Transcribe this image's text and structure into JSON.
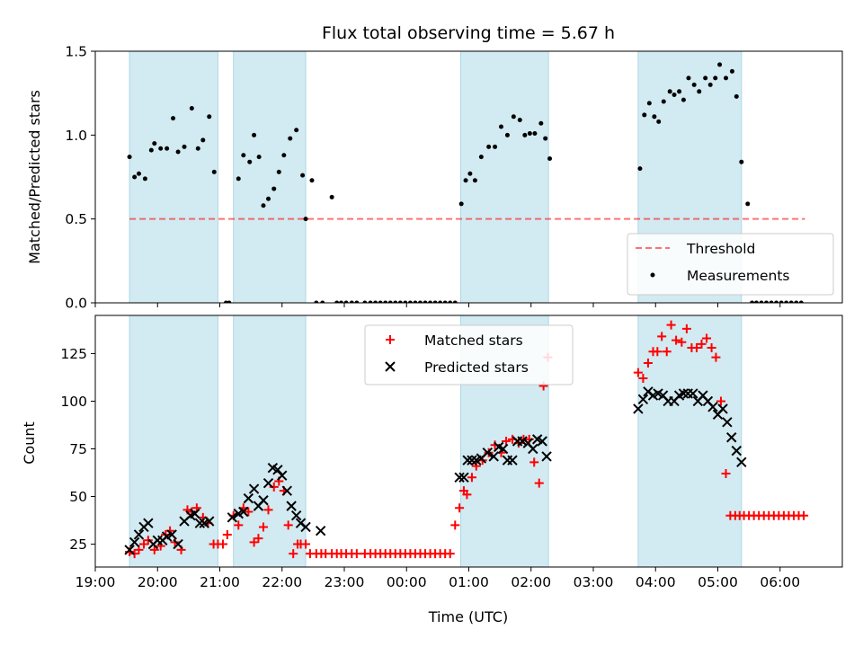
{
  "chart_data": {
    "type": "scatter",
    "title": "Flux total observing time = 5.67 h",
    "xlabel": "Time (UTC)",
    "x_unit": "hours since 19:00 UTC",
    "xlim": [
      19.0,
      31.0
    ],
    "x_ticks": [
      "19:00",
      "20:00",
      "21:00",
      "22:00",
      "23:00",
      "00:00",
      "01:00",
      "02:00",
      "03:00",
      "04:00",
      "05:00",
      "06:00"
    ],
    "observing_windows": [
      [
        19.55,
        20.97
      ],
      [
        21.22,
        22.38
      ],
      [
        24.87,
        26.28
      ],
      [
        27.72,
        29.38
      ]
    ],
    "colors": {
      "window": "#add8e6",
      "threshold": "#ff0000",
      "measurement": "#000000",
      "matched": "#ff0000",
      "predicted": "#000000"
    },
    "panels": [
      {
        "ylabel": "Matched/Predicted stars",
        "ylim": [
          0,
          1.5
        ],
        "y_ticks": [
          "0.0",
          "0.5",
          "1.0",
          "1.5"
        ],
        "legend_position": "lower right",
        "series": [
          {
            "name": "Threshold",
            "style": "dashed-line",
            "x": [
              19.55,
              30.4
            ],
            "y": [
              0.5,
              0.5
            ]
          },
          {
            "name": "Measurements",
            "style": "dots",
            "x": [
              19.55,
              19.63,
              19.7,
              19.8,
              19.9,
              19.95,
              20.05,
              20.15,
              20.25,
              20.33,
              20.43,
              20.55,
              20.65,
              20.73,
              20.83,
              20.91,
              21.1,
              21.15,
              21.3,
              21.38,
              21.48,
              21.55,
              21.63,
              21.7,
              21.78,
              21.87,
              21.95,
              22.03,
              22.13,
              22.23,
              22.33,
              22.38,
              22.48,
              22.55,
              22.65,
              22.8,
              22.88,
              22.95,
              23.03,
              23.12,
              23.2,
              23.33,
              23.42,
              23.5,
              23.58,
              23.66,
              23.74,
              23.82,
              23.9,
              23.98,
              24.06,
              24.14,
              24.22,
              24.3,
              24.38,
              24.46,
              24.54,
              24.62,
              24.7,
              24.78,
              24.88,
              24.95,
              25.02,
              25.1,
              25.2,
              25.32,
              25.42,
              25.52,
              25.62,
              25.72,
              25.82,
              25.9,
              25.98,
              26.06,
              26.16,
              26.23,
              26.3,
              27.75,
              27.82,
              27.9,
              27.98,
              28.05,
              28.13,
              28.23,
              28.3,
              28.38,
              28.45,
              28.53,
              28.62,
              28.7,
              28.8,
              28.88,
              28.96,
              29.03,
              29.13,
              29.23,
              29.3,
              29.38,
              29.48,
              29.55,
              29.62,
              29.7,
              29.78,
              29.86,
              29.94,
              30.02,
              30.1,
              30.18,
              30.26,
              30.34
            ],
            "y": [
              0.87,
              0.75,
              0.77,
              0.74,
              0.91,
              0.95,
              0.92,
              0.92,
              1.1,
              0.9,
              0.93,
              1.16,
              0.92,
              0.97,
              1.11,
              0.78,
              0.0,
              0.0,
              0.74,
              0.88,
              0.84,
              1.0,
              0.87,
              0.58,
              0.62,
              0.68,
              0.78,
              0.88,
              0.98,
              1.03,
              0.76,
              0.5,
              0.73,
              0.0,
              0.0,
              0.63,
              0.0,
              0.0,
              0.0,
              0.0,
              0.0,
              0.0,
              0.0,
              0.0,
              0.0,
              0.0,
              0.0,
              0.0,
              0.0,
              0.0,
              0.0,
              0.0,
              0.0,
              0.0,
              0.0,
              0.0,
              0.0,
              0.0,
              0.0,
              0.0,
              0.59,
              0.73,
              0.77,
              0.73,
              0.87,
              0.93,
              0.93,
              1.05,
              1.0,
              1.11,
              1.09,
              1.0,
              1.01,
              1.01,
              1.07,
              0.98,
              0.86,
              0.8,
              1.12,
              1.19,
              1.11,
              1.08,
              1.2,
              1.26,
              1.24,
              1.26,
              1.21,
              1.34,
              1.3,
              1.26,
              1.34,
              1.3,
              1.34,
              1.42,
              1.34,
              1.38,
              1.23,
              0.84,
              0.59,
              0.0,
              0.0,
              0.0,
              0.0,
              0.0,
              0.0,
              0.0,
              0.0,
              0.0,
              0.0,
              0.0
            ]
          }
        ]
      },
      {
        "ylabel": "Count",
        "ylim": [
          13,
          145
        ],
        "y_ticks": [
          "25",
          "50",
          "75",
          "100",
          "125"
        ],
        "legend_position": "upper center",
        "series": [
          {
            "name": "Matched stars",
            "marker": "plus",
            "x": [
              19.55,
              19.63,
              19.7,
              19.78,
              19.85,
              19.95,
              20.05,
              20.13,
              20.2,
              20.28,
              20.38,
              20.48,
              20.55,
              20.63,
              20.73,
              20.81,
              20.9,
              20.97,
              21.05,
              21.12,
              21.22,
              21.3,
              21.38,
              21.46,
              21.55,
              21.62,
              21.7,
              21.78,
              21.87,
              21.95,
              22.03,
              22.1,
              22.18,
              22.25,
              22.3,
              22.38,
              22.45,
              22.55,
              22.63,
              22.7,
              22.8,
              22.88,
              22.95,
              23.03,
              23.12,
              23.2,
              23.33,
              23.42,
              23.5,
              23.58,
              23.66,
              23.74,
              23.82,
              23.9,
              23.98,
              24.06,
              24.14,
              24.22,
              24.3,
              24.38,
              24.46,
              24.54,
              24.62,
              24.7,
              24.78,
              24.85,
              24.92,
              24.97,
              25.05,
              25.12,
              25.22,
              25.32,
              25.42,
              25.52,
              25.6,
              25.7,
              25.8,
              25.88,
              25.97,
              26.05,
              26.13,
              26.2,
              26.27,
              27.72,
              27.8,
              27.88,
              27.96,
              28.03,
              28.1,
              28.18,
              28.25,
              28.33,
              28.42,
              28.5,
              28.58,
              28.66,
              28.74,
              28.82,
              28.9,
              28.97,
              29.05,
              29.13,
              29.2,
              29.28,
              29.35,
              29.42,
              29.5,
              29.58,
              29.66,
              29.74,
              29.82,
              29.9,
              29.98,
              30.06,
              30.14,
              30.22,
              30.3,
              30.38
            ],
            "y": [
              21,
              20,
              22,
              25,
              27,
              22,
              24,
              30,
              32,
              26,
              22,
              43,
              42,
              44,
              39,
              36,
              25,
              25,
              25,
              30,
              40,
              35,
              44,
              42,
              26,
              28,
              34,
              43,
              55,
              58,
              53,
              35,
              20,
              25,
              25,
              25,
              20,
              20,
              20,
              20,
              20,
              20,
              20,
              20,
              20,
              20,
              20,
              20,
              20,
              20,
              20,
              20,
              20,
              20,
              20,
              20,
              20,
              20,
              20,
              20,
              20,
              20,
              20,
              20,
              35,
              44,
              53,
              51,
              60,
              66,
              69,
              73,
              77,
              73,
              79,
              80,
              78,
              80,
              80,
              68,
              57,
              108,
              123,
              115,
              112,
              120,
              126,
              126,
              134,
              126,
              140,
              132,
              131,
              138,
              128,
              128,
              130,
              133,
              128,
              123,
              100,
              62,
              40,
              40,
              40,
              40,
              40,
              40,
              40,
              40,
              40,
              40,
              40,
              40,
              40,
              40,
              40,
              40
            ]
          },
          {
            "name": "Predicted stars",
            "marker": "x",
            "x": [
              19.55,
              19.63,
              19.7,
              19.78,
              19.85,
              19.93,
              20.0,
              20.08,
              20.15,
              20.23,
              20.33,
              20.43,
              20.53,
              20.6,
              20.68,
              20.75,
              20.83,
              21.2,
              21.3,
              21.38,
              21.46,
              21.55,
              21.62,
              21.7,
              21.78,
              21.85,
              21.93,
              22.0,
              22.08,
              22.15,
              22.23,
              22.3,
              22.38,
              22.62,
              24.85,
              24.92,
              24.98,
              25.05,
              25.12,
              25.2,
              25.3,
              25.4,
              25.48,
              25.55,
              25.62,
              25.7,
              25.78,
              25.86,
              25.95,
              26.03,
              26.1,
              26.18,
              26.25,
              27.72,
              27.8,
              27.88,
              27.96,
              28.04,
              28.12,
              28.2,
              28.3,
              28.38,
              28.45,
              28.52,
              28.6,
              28.68,
              28.76,
              28.84,
              28.92,
              29.0,
              29.08,
              29.15,
              29.22,
              29.3,
              29.38
            ],
            "y": [
              22,
              26,
              30,
              34,
              36,
              25,
              27,
              27,
              29,
              30,
              25,
              37,
              40,
              41,
              36,
              36,
              37,
              39,
              41,
              42,
              49,
              54,
              45,
              48,
              57,
              65,
              64,
              61,
              53,
              45,
              40,
              36,
              34,
              32,
              60,
              60,
              69,
              69,
              69,
              70,
              73,
              71,
              76,
              75,
              69,
              69,
              79,
              79,
              78,
              75,
              80,
              79,
              71,
              96,
              101,
              105,
              103,
              104,
              103,
              100,
              100,
              103,
              104,
              104,
              104,
              100,
              103,
              100,
              97,
              93,
              96,
              89,
              81,
              74,
              68
            ]
          }
        ]
      }
    ]
  }
}
